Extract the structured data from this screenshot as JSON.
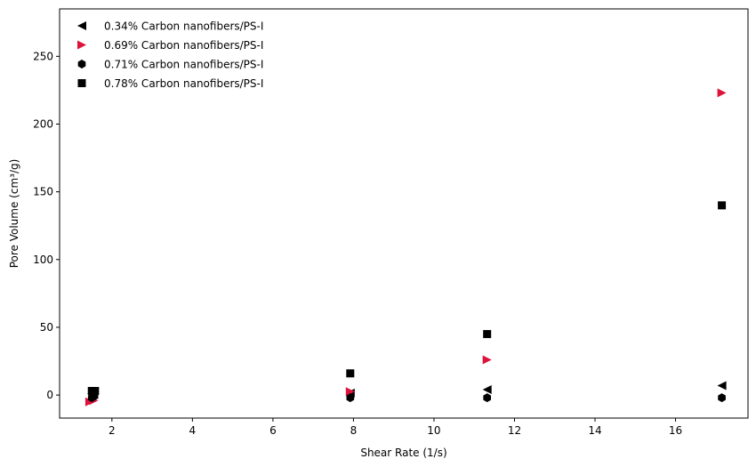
{
  "chart_data": {
    "type": "scatter",
    "xlabel": "Shear Rate (1/s)",
    "ylabel": "Pore Volume (cm³/g)",
    "xlim": [
      0.7,
      17.8
    ],
    "ylim": [
      -17,
      285
    ],
    "xticks": [
      2,
      4,
      6,
      8,
      10,
      12,
      14,
      16
    ],
    "yticks": [
      0,
      50,
      100,
      150,
      200,
      250
    ],
    "legend_position": "top-left",
    "grid": false,
    "series": [
      {
        "name": "0.34% Carbon nanofibers/PS-I",
        "marker": "triangle-left",
        "color": "#000000",
        "points": [
          [
            1.5,
            1.0
          ],
          [
            1.55,
            0.5
          ],
          [
            7.92,
            1.5
          ],
          [
            11.32,
            4.0
          ],
          [
            17.15,
            7.0
          ]
        ]
      },
      {
        "name": "0.69% Carbon nanofibers/PS-I",
        "marker": "triangle-right",
        "color": "#dc143c",
        "points": [
          [
            1.45,
            -5.0
          ],
          [
            1.55,
            -4.0
          ],
          [
            7.92,
            2.5
          ],
          [
            11.32,
            26.0
          ],
          [
            17.15,
            223.0
          ]
        ]
      },
      {
        "name": "0.71% Carbon nanofibers/PS-I",
        "marker": "hexagon",
        "color": "#000000",
        "points": [
          [
            1.5,
            -2.0
          ],
          [
            1.55,
            -1.0
          ],
          [
            7.92,
            -2.0
          ],
          [
            11.32,
            -2.0
          ],
          [
            17.15,
            -2.0
          ]
        ]
      },
      {
        "name": "0.78% Carbon nanofibers/PS-I",
        "marker": "square",
        "color": "#000000",
        "points": [
          [
            1.5,
            3.0
          ],
          [
            1.58,
            3.0
          ],
          [
            7.92,
            16.0
          ],
          [
            11.32,
            45.0
          ],
          [
            17.15,
            140.0
          ]
        ]
      }
    ]
  }
}
